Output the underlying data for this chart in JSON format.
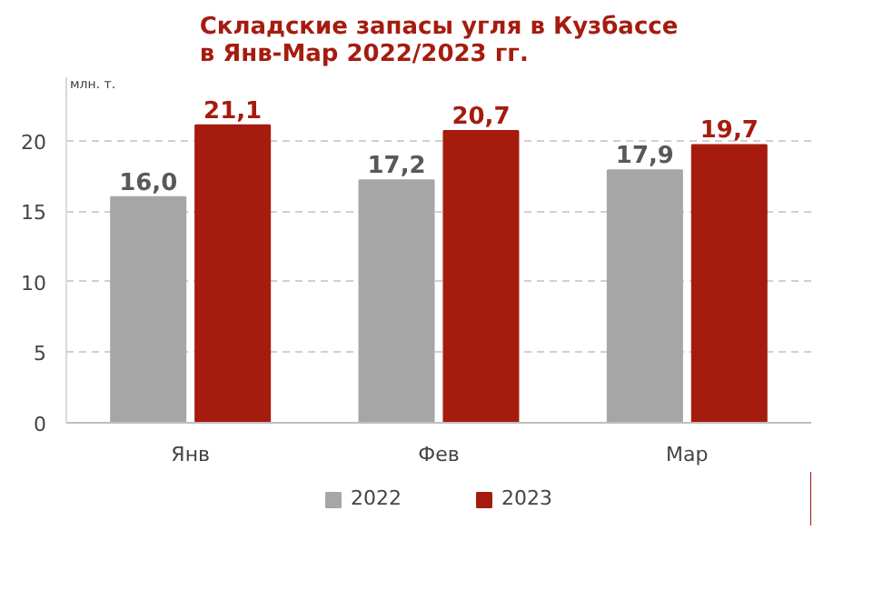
{
  "chart_data": {
    "type": "bar",
    "title": "Складские запасы угля в Кузбассе\nв Янв-Мар 2022/2023 гг.",
    "ylabel": "млн. т.",
    "categories": [
      "Янв",
      "Фев",
      "Мар"
    ],
    "series": [
      {
        "name": "2022",
        "color": "#a6a6a6",
        "values": [
          16.0,
          17.2,
          17.9
        ],
        "value_labels": [
          "16,0",
          "17,2",
          "17,9"
        ]
      },
      {
        "name": "2023",
        "color": "#a51c0f",
        "values": [
          21.1,
          20.7,
          19.7
        ],
        "value_labels": [
          "21,1",
          "20,7",
          "19,7"
        ]
      }
    ],
    "ylim": [
      0,
      24.5
    ],
    "yticks": [
      0,
      5,
      10,
      15,
      20
    ],
    "grid": "y",
    "legend": "bottom"
  }
}
